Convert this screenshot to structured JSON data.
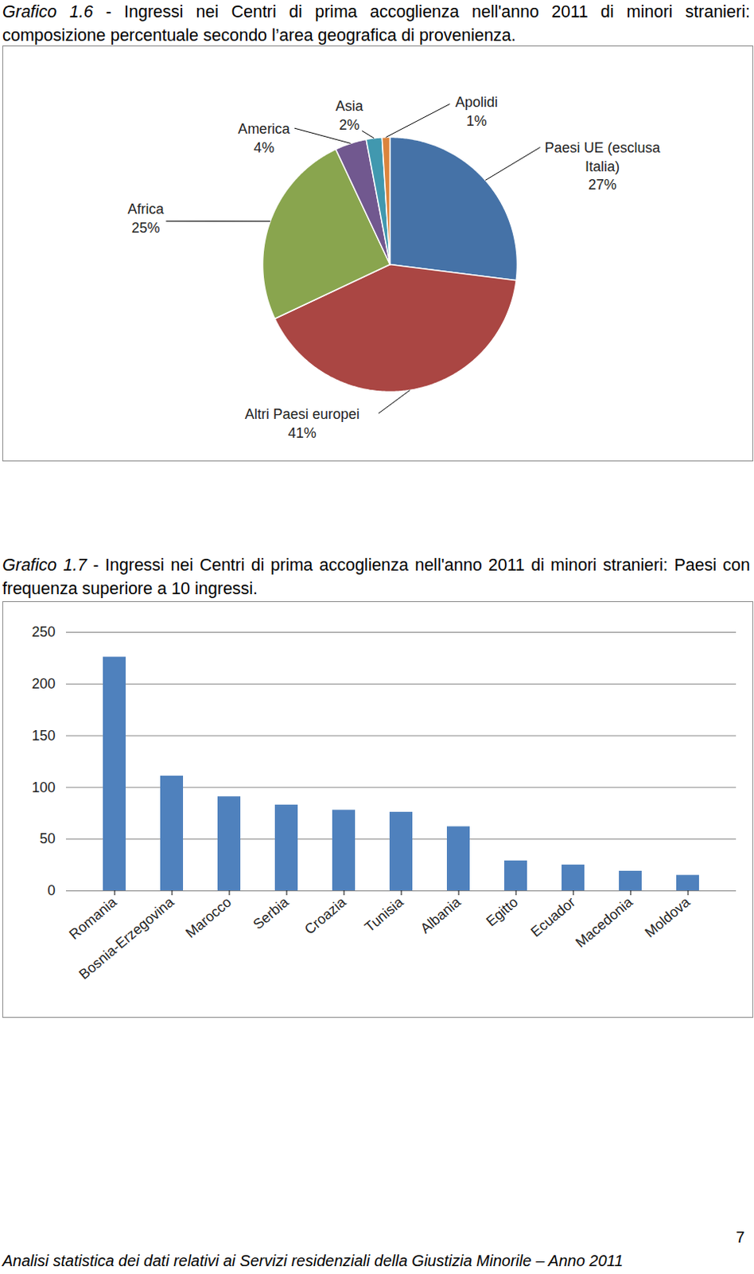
{
  "chart_data": [
    {
      "type": "pie",
      "title": "Grafico 1.6 - Ingressi nei Centri di prima accoglienza nell'anno 2011 di minori stranieri: composizione percentuale secondo l’area geografica di provenienza.",
      "categories": [
        "Paesi UE (esclusa Italia)",
        "Altri Paesi europei",
        "Africa",
        "America",
        "Asia",
        "Apolidi"
      ],
      "values": [
        27,
        41,
        25,
        4,
        2,
        1
      ],
      "value_labels": [
        "27%",
        "41%",
        "25%",
        "4%",
        "2%",
        "1%"
      ],
      "colors": [
        "#4572A7",
        "#AA4643",
        "#89A54E",
        "#71588F",
        "#4198AF",
        "#DB843D"
      ],
      "data_labels": true
    },
    {
      "type": "bar",
      "title": "Grafico 1.7 - Ingressi nei Centri di prima accoglienza nell'anno 2011 di minori stranieri: Paesi con frequenza superiore a 10 ingressi.",
      "categories": [
        "Romania",
        "Bosnia-Erzegovina",
        "Marocco",
        "Serbia",
        "Croazia",
        "Tunisia",
        "Albania",
        "Egitto",
        "Ecuador",
        "Macedonia",
        "Moldova"
      ],
      "values": [
        226,
        111,
        91,
        83,
        78,
        76,
        62,
        29,
        25,
        19,
        15
      ],
      "color": "#4F81BD",
      "ylim": [
        0,
        250
      ],
      "yticks": [
        0,
        50,
        100,
        150,
        200,
        250
      ],
      "grid": true
    }
  ],
  "footer": "Analisi statistica dei dati relativi ai Servizi residenziali della Giustizia Minorile – Anno 2011",
  "page_number": 7
}
